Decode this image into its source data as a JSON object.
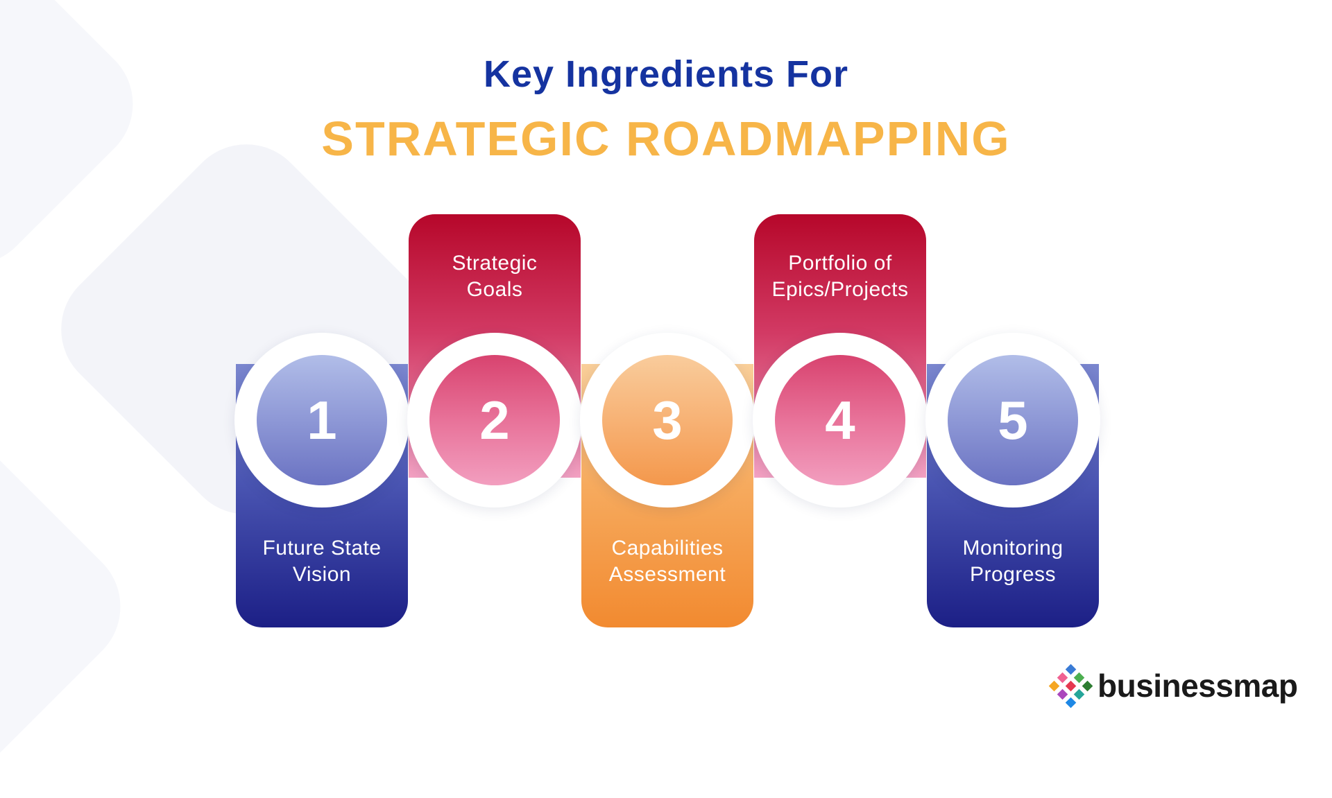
{
  "title": {
    "line1": "Key Ingredients For",
    "line2": "STRATEGIC ROADMAPPING"
  },
  "steps": [
    {
      "number": "1",
      "line1": "Future State",
      "line2": "Vision"
    },
    {
      "number": "2",
      "line1": "Strategic",
      "line2": "Goals"
    },
    {
      "number": "3",
      "line1": "Capabilities",
      "line2": "Assessment"
    },
    {
      "number": "4",
      "line1": "Portfolio of",
      "line2": "Epics/Projects"
    },
    {
      "number": "5",
      "line1": "Monitoring",
      "line2": "Progress"
    }
  ],
  "logo": {
    "text": "businessmap"
  },
  "colors": {
    "title_blue": "#1533a0",
    "title_orange": "#f7b548",
    "blue_top": "#7b87cf",
    "blue_bottom": "#1c1f86",
    "red_top": "#b6072a",
    "red_bottom": "#f2a1c2",
    "orange_top": "#f9cf9a",
    "orange_bottom": "#f28a30",
    "logo_dark": "#1a1a1a"
  }
}
